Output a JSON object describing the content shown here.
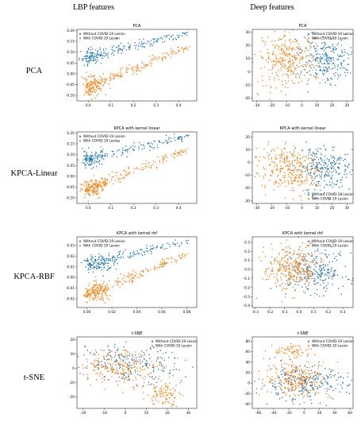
{
  "figure": {
    "column_titles": [
      "LBP features",
      "Deep features"
    ],
    "row_labels": [
      "PCA",
      "KPCA-Linear",
      "KPCA-RBF",
      "t-SNE"
    ],
    "colors": {
      "without": "#1f77b4",
      "with": "#ff7f0e"
    }
  },
  "chart_data": [
    {
      "type": "scatter",
      "title": "PCA",
      "xlabel": "",
      "ylabel": "",
      "xlim": [
        -0.05,
        0.48
      ],
      "ylim": [
        -0.125,
        0.205
      ],
      "xticks": [
        "0.0",
        "0.1",
        "0.2",
        "0.3",
        "0.4"
      ],
      "yticks": [
        "-0.10",
        "-0.05",
        "0.00",
        "0.05",
        "0.10",
        "0.15",
        "0.20"
      ],
      "legend": "top-left",
      "grid": false,
      "series": [
        {
          "name": "Without COVID-19 Lesion"
        },
        {
          "name": "With COVID-19 Lesion"
        }
      ]
    },
    {
      "type": "scatter",
      "title": "PCA",
      "xlabel": "",
      "ylabel": "",
      "xlim": [
        -33,
        34
      ],
      "ylim": [
        -22,
        32
      ],
      "xticks": [
        "-30",
        "-20",
        "-10",
        "0",
        "10",
        "20",
        "30"
      ],
      "yticks": [
        "-20",
        "-10",
        "0",
        "10",
        "20",
        "30"
      ],
      "legend": "top-right",
      "grid": false,
      "series": [
        {
          "name": "Without COVID-19 Lesion"
        },
        {
          "name": "With COVID-19 Lesion"
        }
      ]
    },
    {
      "type": "scatter",
      "title": "KPCA with kernel linear",
      "xlabel": "",
      "ylabel": "",
      "xlim": [
        -0.05,
        0.48
      ],
      "ylim": [
        -0.125,
        0.205
      ],
      "xticks": [
        "0.0",
        "0.1",
        "0.2",
        "0.3",
        "0.4"
      ],
      "yticks": [
        "-0.10",
        "-0.05",
        "0.00",
        "0.05",
        "0.10",
        "0.15",
        "0.20"
      ],
      "legend": "top-left",
      "grid": false,
      "series": [
        {
          "name": "Without COVID-19 Lesion"
        },
        {
          "name": "With COVID-19 Lesion"
        }
      ]
    },
    {
      "type": "scatter",
      "title": "KPCA with kernel linear",
      "xlabel": "",
      "ylabel": "",
      "xlim": [
        -33,
        34
      ],
      "ylim": [
        -32,
        24
      ],
      "xticks": [
        "-30",
        "-20",
        "-10",
        "0",
        "10",
        "20",
        "30"
      ],
      "yticks": [
        "-30",
        "-20",
        "-10",
        "0",
        "10",
        "20"
      ],
      "legend": "bottom-right",
      "grid": false,
      "series": [
        {
          "name": "Without COVID-19 Lesion"
        },
        {
          "name": "With COVID-19 Lesion"
        }
      ]
    },
    {
      "type": "scatter",
      "title": "KPCA with kernel rbf",
      "xlabel": "",
      "ylabel": "",
      "xlim": [
        -0.008,
        0.088
      ],
      "ylim": [
        -0.028,
        0.038
      ],
      "xticks": [
        "0.00",
        "0.02",
        "0.04",
        "0.06",
        "0.08"
      ],
      "yticks": [
        "-0.02",
        "-0.01",
        "0.00",
        "0.01",
        "0.02",
        "0.03"
      ],
      "legend": "top-left",
      "grid": false,
      "series": [
        {
          "name": "Without COVID-19 Lesion"
        },
        {
          "name": "With COVID-19 Lesion"
        }
      ]
    },
    {
      "type": "scatter",
      "title": "KPCA with kernel rbf",
      "xlabel": "",
      "ylabel": "",
      "xlim": [
        -0.32,
        0.37
      ],
      "ylim": [
        -0.42,
        0.36
      ],
      "xticks": [
        "-0.3",
        "-0.2",
        "-0.1",
        "0.0",
        "0.1",
        "0.2",
        "0.3"
      ],
      "yticks": [
        "-0.4",
        "-0.3",
        "-0.2",
        "-0.1",
        "0.0",
        "0.1",
        "0.2",
        "0.3"
      ],
      "legend": "top-right",
      "grid": false,
      "series": [
        {
          "name": "Without COVID-19 Lesion"
        },
        {
          "name": "With COVID-19 Lesion"
        }
      ]
    },
    {
      "type": "scatter",
      "title": "t-SNE",
      "xlabel": "",
      "ylabel": "",
      "xlim": [
        -23,
        34
      ],
      "ylim": [
        -28,
        22
      ],
      "xticks": [
        "-20",
        "-10",
        "0",
        "10",
        "20",
        "30"
      ],
      "yticks": [
        "-20",
        "-10",
        "0",
        "10",
        "20"
      ],
      "legend": "top-right",
      "grid": false,
      "series": [
        {
          "name": "Without COVID-19 Lesion"
        },
        {
          "name": "With COVID-19 Lesion"
        }
      ]
    },
    {
      "type": "scatter",
      "title": "t-SNE",
      "xlabel": "",
      "ylabel": "",
      "xlim": [
        -68,
        64
      ],
      "ylim": [
        -48,
        88
      ],
      "xticks": [
        "-60",
        "-40",
        "-20",
        "0",
        "20",
        "40",
        "60"
      ],
      "yticks": [
        "-40",
        "-20",
        "0",
        "20",
        "40",
        "60",
        "80"
      ],
      "legend": "top-right",
      "grid": false,
      "series": [
        {
          "name": "Without COVID-19 Lesion"
        },
        {
          "name": "With COVID-19 Lesion"
        }
      ]
    }
  ]
}
